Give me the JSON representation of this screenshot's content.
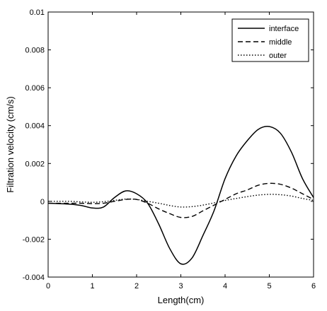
{
  "chart_data": {
    "type": "line",
    "title": "",
    "xlabel": "Length(cm)",
    "ylabel": "Filtration velocity (cm/s)",
    "xlim": [
      0,
      6
    ],
    "ylim": [
      -0.004,
      0.01
    ],
    "grid": false,
    "legend_position": "top-right",
    "xticks": [
      0,
      1,
      2,
      3,
      4,
      5,
      6
    ],
    "xtick_labels": [
      "0",
      "1",
      "2",
      "3",
      "4",
      "5",
      "6"
    ],
    "yticks": [
      -0.004,
      -0.002,
      0,
      0.002,
      0.004,
      0.006,
      0.008,
      0.01
    ],
    "ytick_labels": [
      "-0.004",
      "-0.002",
      "0",
      "0.002",
      "0.004",
      "0.006",
      "0.008",
      "0.01"
    ],
    "x": [
      0,
      0.25,
      0.5,
      0.75,
      1,
      1.25,
      1.5,
      1.75,
      2,
      2.25,
      2.5,
      2.75,
      3,
      3.25,
      3.5,
      3.75,
      4,
      4.25,
      4.5,
      4.75,
      5,
      5.25,
      5.5,
      5.75,
      6
    ],
    "series": [
      {
        "name": "interface",
        "style": "solid",
        "color": "#000000",
        "values": [
          -0.0001,
          -0.00012,
          -0.00015,
          -0.00022,
          -0.00035,
          -0.0003,
          0.0002,
          0.00055,
          0.0004,
          -0.0001,
          -0.0012,
          -0.0025,
          -0.0033,
          -0.003,
          -0.0018,
          -0.0005,
          0.0012,
          0.0024,
          0.0032,
          0.0038,
          0.00395,
          0.0036,
          0.0026,
          0.0012,
          0.0002
        ]
      },
      {
        "name": "middle",
        "style": "dashed",
        "color": "#000000",
        "values": [
          -0.0001,
          -0.0001,
          -0.0001,
          -0.0001,
          -0.00012,
          -0.0001,
          0.0,
          0.0001,
          0.0001,
          -0.0001,
          -0.0004,
          -0.00065,
          -0.00085,
          -0.0008,
          -0.0005,
          -0.0002,
          0.0001,
          0.0004,
          0.0006,
          0.00085,
          0.00095,
          0.0009,
          0.0007,
          0.0004,
          0.0001
        ]
      },
      {
        "name": "outer",
        "style": "dotted",
        "color": "#000000",
        "values": [
          0.0,
          0.0,
          0.0,
          -3e-05,
          -5e-05,
          -2e-05,
          5e-05,
          0.00012,
          0.0001,
          0.0,
          -0.0001,
          -0.00022,
          -0.0003,
          -0.00028,
          -0.0002,
          -8e-05,
          5e-05,
          0.00015,
          0.00025,
          0.00033,
          0.00037,
          0.00035,
          0.00028,
          0.00015,
          5e-05
        ]
      }
    ]
  }
}
